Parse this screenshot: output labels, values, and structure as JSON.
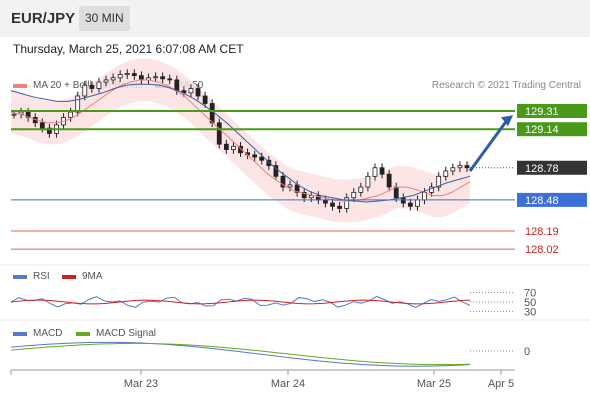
{
  "header": {
    "symbol": "EUR/JPY",
    "interval": "30 MIN"
  },
  "timestamp": "Thursday, March 25, 2021 6:07:08 AM CET",
  "credit": "Research © 2021 Trading Central",
  "colors": {
    "ma20": "#f08080",
    "ma50": "#3a5fa0",
    "bb_fill": "#fde0e0",
    "resistance": "#4a9a1a",
    "support": "#3c6fd8",
    "pivot_red": "#e06060",
    "candle_up": "#222222",
    "rsi": "#5577cc",
    "ma9": "#cc2222",
    "macd": "#5577cc",
    "signal": "#66aa22",
    "last_price_bg": "#333333"
  },
  "chart_data": [
    {
      "type": "candlestick",
      "legend": [
        {
          "name": "MA 20 + Bollinger Bands",
          "color": "#f08080"
        },
        {
          "name": "MA 50",
          "color": "#3a5fa0"
        }
      ],
      "xlabels": [
        "Mar 23",
        "Mar 24",
        "Mar 25",
        "Apr 5"
      ],
      "ylim": [
        127.9,
        129.45
      ],
      "levels": [
        {
          "label": "129.31",
          "value": 129.31,
          "kind": "resistance"
        },
        {
          "label": "129.14",
          "value": 129.14,
          "kind": "resistance"
        },
        {
          "label": "128.78",
          "value": 128.78,
          "kind": "last"
        },
        {
          "label": "128.48",
          "value": 128.48,
          "kind": "support"
        },
        {
          "label": "128.19",
          "value": 128.19,
          "kind": "pivot"
        },
        {
          "label": "128.02",
          "value": 128.02,
          "kind": "pivot"
        }
      ],
      "close": [
        129.28,
        129.3,
        129.25,
        129.2,
        129.15,
        129.1,
        129.18,
        129.25,
        129.3,
        129.45,
        129.55,
        129.52,
        129.58,
        129.6,
        129.62,
        129.65,
        129.66,
        129.64,
        129.6,
        129.62,
        129.63,
        129.61,
        129.6,
        129.5,
        129.48,
        129.52,
        129.45,
        129.38,
        129.2,
        129.0,
        128.95,
        128.98,
        128.92,
        128.9,
        128.88,
        128.85,
        128.8,
        128.7,
        128.6,
        128.62,
        128.55,
        128.5,
        128.52,
        128.48,
        128.45,
        128.42,
        128.4,
        128.5,
        128.55,
        128.6,
        128.7,
        128.78,
        128.72,
        128.6,
        128.5,
        128.45,
        128.42,
        128.48,
        128.55,
        128.6,
        128.7,
        128.75,
        128.78,
        128.8,
        128.78
      ],
      "ma20": [
        129.3,
        129.28,
        129.25,
        129.22,
        129.2,
        129.2,
        129.22,
        129.26,
        129.32,
        129.38,
        129.44,
        129.5,
        129.55,
        129.58,
        129.6,
        129.6,
        129.58,
        129.55,
        129.5,
        129.44,
        129.36,
        129.28,
        129.2,
        129.12,
        129.04,
        128.96,
        128.88,
        128.8,
        128.72,
        128.66,
        128.6,
        128.56,
        128.54,
        128.52,
        128.5,
        128.48,
        128.47,
        128.47,
        128.48,
        128.5,
        128.52,
        128.56,
        128.6,
        128.6,
        128.58,
        128.55,
        128.52,
        128.52,
        128.55,
        128.6,
        128.65
      ],
      "ma50": [
        129.5,
        129.47,
        129.44,
        129.42,
        129.4,
        129.4,
        129.42,
        129.45,
        129.48,
        129.52,
        129.55,
        129.56,
        129.56,
        129.55,
        129.52,
        129.48,
        129.42,
        129.35,
        129.27,
        129.18,
        129.08,
        128.98,
        128.88,
        128.78,
        128.7,
        128.62,
        128.56,
        128.52,
        128.5,
        128.48,
        128.47,
        128.46,
        128.47,
        128.48,
        128.5,
        128.52,
        128.56,
        128.6,
        128.64,
        128.67,
        128.7
      ]
    },
    {
      "type": "line",
      "legend": [
        {
          "name": "RSI",
          "color": "#5577cc"
        },
        {
          "name": "9MA",
          "color": "#cc2222"
        }
      ],
      "yticks": [
        "70",
        "50",
        "30"
      ],
      "ylim": [
        20,
        80
      ]
    },
    {
      "type": "line",
      "legend": [
        {
          "name": "MACD",
          "color": "#5577cc"
        },
        {
          "name": "MACD Signal",
          "color": "#66aa22"
        }
      ],
      "yticks": [
        "0"
      ]
    }
  ]
}
